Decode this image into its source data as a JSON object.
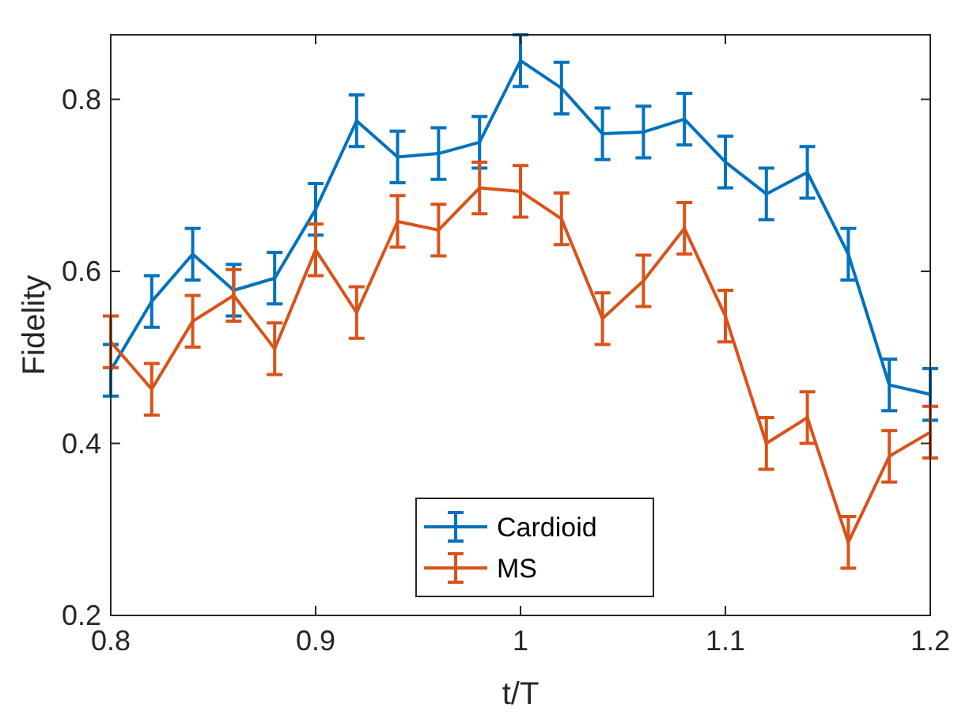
{
  "chart_data": {
    "type": "line",
    "xlabel": "t/T",
    "ylabel": "Fidelity",
    "x": [
      0.8,
      0.82,
      0.84,
      0.86,
      0.88,
      0.9,
      0.92,
      0.94,
      0.96,
      0.98,
      1.0,
      1.02,
      1.04,
      1.06,
      1.08,
      1.1,
      1.12,
      1.14,
      1.16,
      1.18,
      1.2
    ],
    "series": [
      {
        "name": "Cardioid",
        "color": "#0072bd",
        "values": [
          0.485,
          0.565,
          0.62,
          0.578,
          0.592,
          0.672,
          0.775,
          0.733,
          0.737,
          0.75,
          0.845,
          0.813,
          0.76,
          0.762,
          0.777,
          0.727,
          0.69,
          0.715,
          0.62,
          0.468,
          0.457
        ],
        "errors": [
          0.03,
          0.03,
          0.03,
          0.03,
          0.03,
          0.03,
          0.03,
          0.03,
          0.03,
          0.03,
          0.03,
          0.03,
          0.03,
          0.03,
          0.03,
          0.03,
          0.03,
          0.03,
          0.03,
          0.03,
          0.03
        ]
      },
      {
        "name": "MS",
        "color": "#d95319",
        "values": [
          0.518,
          0.463,
          0.542,
          0.572,
          0.51,
          0.625,
          0.552,
          0.658,
          0.648,
          0.697,
          0.693,
          0.661,
          0.545,
          0.589,
          0.65,
          0.548,
          0.4,
          0.43,
          0.285,
          0.385,
          0.413
        ],
        "errors": [
          0.03,
          0.03,
          0.03,
          0.03,
          0.03,
          0.03,
          0.03,
          0.03,
          0.03,
          0.03,
          0.03,
          0.03,
          0.03,
          0.03,
          0.03,
          0.03,
          0.03,
          0.03,
          0.03,
          0.03,
          0.03
        ]
      }
    ],
    "xlim": [
      0.8,
      1.2
    ],
    "xticks": [
      0.8,
      0.9,
      1,
      1.1,
      1.2
    ],
    "ylim": [
      0.2,
      0.875
    ],
    "yticks": [
      0.2,
      0.4,
      0.6,
      0.8
    ],
    "grid": false,
    "legend": "bottom",
    "marker": "none",
    "line_style": "solid"
  }
}
